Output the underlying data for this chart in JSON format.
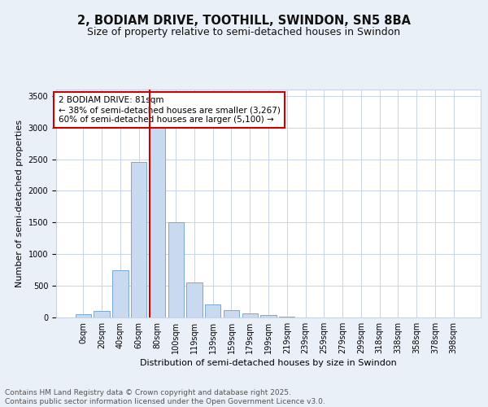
{
  "title_line1": "2, BODIAM DRIVE, TOOTHILL, SWINDON, SN5 8BA",
  "title_line2": "Size of property relative to semi-detached houses in Swindon",
  "xlabel": "Distribution of semi-detached houses by size in Swindon",
  "ylabel": "Number of semi-detached properties",
  "bar_labels": [
    "0sqm",
    "20sqm",
    "40sqm",
    "60sqm",
    "80sqm",
    "100sqm",
    "119sqm",
    "139sqm",
    "159sqm",
    "179sqm",
    "199sqm",
    "219sqm",
    "239sqm",
    "259sqm",
    "279sqm",
    "299sqm",
    "318sqm",
    "338sqm",
    "358sqm",
    "378sqm",
    "398sqm"
  ],
  "bar_values": [
    50,
    100,
    750,
    2450,
    3300,
    1500,
    550,
    200,
    110,
    60,
    40,
    10,
    5,
    3,
    2,
    1,
    0,
    0,
    0,
    0,
    0
  ],
  "bar_color": "#c9d9f0",
  "bar_edge_color": "#7aa8d4",
  "vline_color": "#cc0000",
  "vline_x_index": 4,
  "annotation_text": "2 BODIAM DRIVE: 81sqm\n← 38% of semi-detached houses are smaller (3,267)\n60% of semi-detached houses are larger (5,100) →",
  "annotation_box_color": "#ffffff",
  "annotation_box_edge_color": "#cc0000",
  "ylim": [
    0,
    3600
  ],
  "yticks": [
    0,
    500,
    1000,
    1500,
    2000,
    2500,
    3000,
    3500
  ],
  "bg_color": "#eaf0f8",
  "plot_bg_color": "#ffffff",
  "grid_color": "#c8d4e4",
  "footer_text": "Contains HM Land Registry data © Crown copyright and database right 2025.\nContains public sector information licensed under the Open Government Licence v3.0.",
  "title_fontsize": 10.5,
  "subtitle_fontsize": 9,
  "axis_label_fontsize": 8,
  "tick_fontsize": 7,
  "annotation_fontsize": 7.5,
  "footer_fontsize": 6.5
}
